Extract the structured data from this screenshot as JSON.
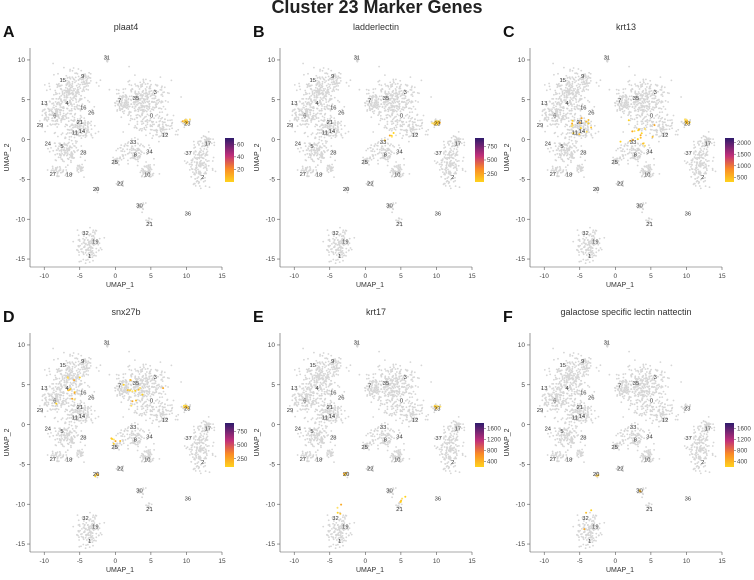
{
  "figure_title": "Cluster 23 Marker Genes",
  "axis_labels": {
    "x": "UMAP_1",
    "y": "UMAP_2"
  },
  "chart_data": [
    {
      "type": "scatter",
      "panel_label": "A",
      "title": "plaat4",
      "xlabel": "UMAP_1",
      "ylabel": "UMAP_2",
      "xticks": [
        -10,
        -5,
        0,
        5,
        10,
        15
      ],
      "yticks": [
        10,
        5,
        0,
        -5,
        -10,
        -15
      ],
      "xlim": [
        -12,
        15
      ],
      "ylim": [
        -16,
        11.5
      ],
      "colorbar_ticks": [
        60,
        40,
        20
      ],
      "colorbar_range": [
        0,
        70
      ]
    },
    {
      "type": "scatter",
      "panel_label": "B",
      "title": "ladderlectin",
      "xlabel": "UMAP_1",
      "ylabel": "UMAP_2",
      "xticks": [
        -10,
        -5,
        0,
        5,
        10,
        15
      ],
      "yticks": [
        10,
        5,
        0,
        -5,
        -10,
        -15
      ],
      "xlim": [
        -12,
        15
      ],
      "ylim": [
        -16,
        11.5
      ],
      "colorbar_ticks": [
        750,
        500,
        250
      ],
      "colorbar_range": [
        100,
        900
      ]
    },
    {
      "type": "scatter",
      "panel_label": "C",
      "title": "krt13",
      "xlabel": "UMAP_1",
      "ylabel": "UMAP_2",
      "xticks": [
        -10,
        -5,
        0,
        5,
        10,
        15
      ],
      "yticks": [
        10,
        5,
        0,
        -5,
        -10,
        -15
      ],
      "xlim": [
        -12,
        15
      ],
      "ylim": [
        -16,
        11.5
      ],
      "colorbar_ticks": [
        2000,
        1500,
        1000,
        500
      ],
      "colorbar_range": [
        300,
        2200
      ]
    },
    {
      "type": "scatter",
      "panel_label": "D",
      "title": "snx27b",
      "xlabel": "UMAP_1",
      "ylabel": "UMAP_2",
      "xticks": [
        -10,
        -5,
        0,
        5,
        10,
        15
      ],
      "yticks": [
        10,
        5,
        0,
        -5,
        -10,
        -15
      ],
      "xlim": [
        -12,
        15
      ],
      "ylim": [
        -16,
        11.5
      ],
      "colorbar_ticks": [
        750,
        500,
        250
      ],
      "colorbar_range": [
        100,
        900
      ]
    },
    {
      "type": "scatter",
      "panel_label": "E",
      "title": "krt17",
      "xlabel": "UMAP_1",
      "ylabel": "UMAP_2",
      "xticks": [
        -10,
        -5,
        0,
        5,
        10,
        15
      ],
      "yticks": [
        10,
        5,
        0,
        -5,
        -10,
        -15
      ],
      "xlim": [
        -12,
        15
      ],
      "ylim": [
        -16,
        11.5
      ],
      "colorbar_ticks": [
        1600,
        1200,
        800,
        400
      ],
      "colorbar_range": [
        200,
        1800
      ]
    },
    {
      "type": "scatter",
      "panel_label": "F",
      "title": "galactose specific lectin nattectin",
      "xlabel": "UMAP_1",
      "ylabel": "UMAP_2",
      "xticks": [
        -10,
        -5,
        0,
        5,
        10,
        15
      ],
      "yticks": [
        10,
        5,
        0,
        -5,
        -10,
        -15
      ],
      "xlim": [
        -12,
        15
      ],
      "ylim": [
        -16,
        11.5
      ],
      "colorbar_ticks": [
        1600,
        1200,
        800,
        400
      ],
      "colorbar_range": [
        200,
        1800
      ]
    }
  ],
  "cluster_labels": [
    {
      "id": "31",
      "x": -1.2,
      "y": 10.3
    },
    {
      "id": "15",
      "x": -7.4,
      "y": 7.5
    },
    {
      "id": "9",
      "x": -4.6,
      "y": 8.0
    },
    {
      "id": "13",
      "x": -10.0,
      "y": 4.6
    },
    {
      "id": "4",
      "x": -6.8,
      "y": 4.6
    },
    {
      "id": "6",
      "x": -8.5,
      "y": 3.0
    },
    {
      "id": "16",
      "x": -4.5,
      "y": 4.0
    },
    {
      "id": "26",
      "x": -3.4,
      "y": 3.4
    },
    {
      "id": "7",
      "x": 0.6,
      "y": 4.9
    },
    {
      "id": "35",
      "x": 2.9,
      "y": 5.2
    },
    {
      "id": "3",
      "x": 5.6,
      "y": 6.0
    },
    {
      "id": "0",
      "x": 5.1,
      "y": 3.0
    },
    {
      "id": "29",
      "x": -10.6,
      "y": 1.8
    },
    {
      "id": "21",
      "x": -5.0,
      "y": 2.2
    },
    {
      "id": "11",
      "x": -5.7,
      "y": 0.9
    },
    {
      "id": "14",
      "x": -4.7,
      "y": 1.1
    },
    {
      "id": "23",
      "x": 10.1,
      "y": 2.0
    },
    {
      "id": "12",
      "x": 7.0,
      "y": 0.6
    },
    {
      "id": "33",
      "x": 2.5,
      "y": -0.3
    },
    {
      "id": "24",
      "x": -9.5,
      "y": -0.5
    },
    {
      "id": "5",
      "x": -7.5,
      "y": -0.8
    },
    {
      "id": "28",
      "x": -4.5,
      "y": -1.6
    },
    {
      "id": "8",
      "x": 2.8,
      "y": -1.9
    },
    {
      "id": "34",
      "x": 4.8,
      "y": -1.5
    },
    {
      "id": "17",
      "x": 13.0,
      "y": -0.5
    },
    {
      "id": "37",
      "x": 10.3,
      "y": -1.7
    },
    {
      "id": "25",
      "x": -0.1,
      "y": -2.8
    },
    {
      "id": "10",
      "x": 4.5,
      "y": -4.4
    },
    {
      "id": "27",
      "x": -8.8,
      "y": -4.3
    },
    {
      "id": "18",
      "x": -6.5,
      "y": -4.4
    },
    {
      "id": "22",
      "x": 0.7,
      "y": -5.5
    },
    {
      "id": "2",
      "x": 12.3,
      "y": -4.7
    },
    {
      "id": "20",
      "x": -2.7,
      "y": -6.2
    },
    {
      "id": "30",
      "x": 3.4,
      "y": -8.3
    },
    {
      "id": "36",
      "x": 10.2,
      "y": -9.3
    },
    {
      "id": "21",
      "x": 4.8,
      "y": -10.6
    },
    {
      "id": "32",
      "x": -4.2,
      "y": -11.7
    },
    {
      "id": "19",
      "x": -2.8,
      "y": -12.8
    },
    {
      "id": "1",
      "x": -3.6,
      "y": -14.6
    }
  ],
  "colors": {
    "grey": "#d8d8d8",
    "high": "#2e1a6b",
    "mid": "#c02f7a",
    "low": "#ffd21e",
    "text": "#222222"
  }
}
